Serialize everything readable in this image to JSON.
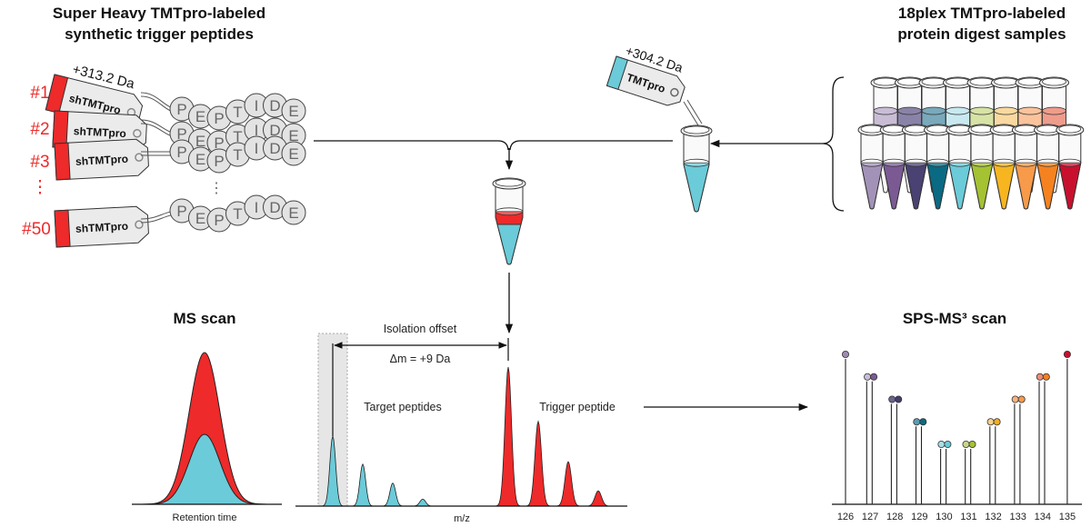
{
  "left_title": [
    "Super Heavy TMTpro-labeled",
    "synthetic trigger peptides"
  ],
  "right_title": [
    "18plex TMTpro-labeled",
    "protein digest samples"
  ],
  "trigger_tags": {
    "mass_label": "+313.2 Da",
    "tag_text": "shTMTpro",
    "numbers": [
      "#1",
      "#2",
      "#3",
      "⋮",
      "#50"
    ],
    "peptide_letters": [
      "P",
      "E",
      "P",
      "T",
      "I",
      "D",
      "E"
    ],
    "color": "#ee2a2a"
  },
  "sample_tag": {
    "mass_label": "+304.2 Da",
    "tag_text": "TMTpro",
    "color": "#6bcbd8"
  },
  "tubes": {
    "back_row_colors": [
      "#c9bdd6",
      "#8a83a8",
      "#79a9bb",
      "#c8e9ef",
      "#d7e2a5",
      "#fad9a0",
      "#fbc39c",
      "#ef9c8c"
    ],
    "front_row_colors": [
      "#a392b8",
      "#7b5a94",
      "#4a4272",
      "#0a6a83",
      "#6bcbd8",
      "#a4c232",
      "#f7b520",
      "#f79a4a",
      "#f5821f",
      "#c8102e"
    ],
    "mixed_tube": {
      "top": "#ee2a2a",
      "bottom": "#6bcbd8"
    }
  },
  "ms_scan": {
    "title": "MS scan",
    "xlabel": "Retention time"
  },
  "ms2": {
    "isolation_label": "Isolation offset",
    "delta_label": "Δm = +9 Da",
    "target_label": "Target peptides",
    "trigger_label": "Trigger peptide",
    "xlabel": "m/z",
    "target_peaks": [
      1.0,
      0.6,
      0.33,
      0.1
    ],
    "trigger_peaks": [
      1.0,
      0.61,
      0.32,
      0.11
    ]
  },
  "sps_ms3": {
    "title": "SPS-MS³ scan",
    "channels": [
      {
        "label": "126",
        "level": 1.0,
        "colors": [
          "#9e8bb0"
        ]
      },
      {
        "label": "127",
        "level": 0.85,
        "colors": [
          "#c9bdd6",
          "#7b5a94"
        ]
      },
      {
        "label": "128",
        "level": 0.7,
        "colors": [
          "#6b6391",
          "#473c6b"
        ]
      },
      {
        "label": "129",
        "level": 0.55,
        "colors": [
          "#5d9ab0",
          "#0a6a83"
        ]
      },
      {
        "label": "130",
        "level": 0.4,
        "colors": [
          "#a9dde6",
          "#6bcbd8"
        ]
      },
      {
        "label": "131",
        "level": 0.4,
        "colors": [
          "#c8d68a",
          "#a4c232"
        ]
      },
      {
        "label": "132",
        "level": 0.55,
        "colors": [
          "#f8d08a",
          "#f5ac21"
        ]
      },
      {
        "label": "133",
        "level": 0.7,
        "colors": [
          "#f9b27e",
          "#f79a4a"
        ]
      },
      {
        "label": "134",
        "level": 0.85,
        "colors": [
          "#f08c74",
          "#f5821f"
        ]
      },
      {
        "label": "135",
        "level": 1.0,
        "colors": [
          "#c8102e"
        ]
      }
    ]
  }
}
